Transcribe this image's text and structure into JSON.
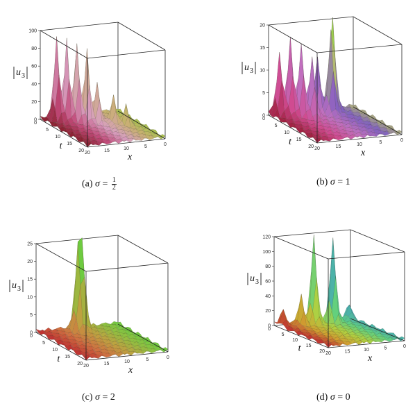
{
  "chart_data": [
    {
      "type": "surface3d",
      "id": "a",
      "caption": {
        "letter": "(a)",
        "symbol": "σ",
        "equals": "=",
        "value_num": "1",
        "value_den": "2",
        "fraction": true
      },
      "zlabel": {
        "base": "u",
        "sub": "3"
      },
      "xlabel": "x",
      "ylabel": "t",
      "z_ticks": [
        "0",
        "20",
        "40",
        "60",
        "80",
        "100"
      ],
      "t_ticks": [
        "0",
        "5",
        "10",
        "15",
        "20"
      ],
      "x_ticks": [
        "20",
        "15",
        "10",
        "5",
        "0"
      ],
      "zlim": [
        0,
        100
      ],
      "palette": [
        "#8a2030",
        "#c24a7a",
        "#d8a0c0",
        "#c8b070",
        "#9acb40",
        "#5fd030"
      ],
      "peaks": [
        {
          "t": 2,
          "x": 17,
          "z": 95
        },
        {
          "t": 3,
          "x": 15,
          "z": 90
        },
        {
          "t": 4,
          "x": 13,
          "z": 88
        },
        {
          "t": 5,
          "x": 11,
          "z": 80
        },
        {
          "t": 2,
          "x": 12,
          "z": 70
        },
        {
          "t": 6,
          "x": 9,
          "z": 45
        },
        {
          "t": 8,
          "x": 6,
          "z": 30
        },
        {
          "t": 10,
          "x": 4,
          "z": 22
        }
      ]
    },
    {
      "type": "surface3d",
      "id": "b",
      "caption": {
        "letter": "(b)",
        "symbol": "σ",
        "equals": "=",
        "value": "1",
        "fraction": false
      },
      "zlabel": {
        "base": "u",
        "sub": "3"
      },
      "xlabel": "x",
      "ylabel": "t",
      "z_ticks": [
        "0",
        "5",
        "10",
        "15",
        "20"
      ],
      "t_ticks": [
        "0",
        "5",
        "10",
        "15",
        "20"
      ],
      "x_ticks": [
        "20",
        "15",
        "10",
        "5",
        "0"
      ],
      "zlim": [
        0,
        20
      ],
      "palette": [
        "#a02040",
        "#d04a90",
        "#c070c0",
        "#8060c0",
        "#c0d060",
        "#60d030"
      ],
      "peaks": [
        {
          "t": 1,
          "x": 18,
          "z": 14
        },
        {
          "t": 2,
          "x": 16,
          "z": 17
        },
        {
          "t": 3,
          "x": 14,
          "z": 16
        },
        {
          "t": 4,
          "x": 12,
          "z": 13
        },
        {
          "t": 1,
          "x": 9,
          "z": 12
        },
        {
          "t": 2,
          "x": 6,
          "z": 22
        },
        {
          "t": 3,
          "x": 7,
          "z": 18
        }
      ]
    },
    {
      "type": "surface3d",
      "id": "c",
      "caption": {
        "letter": "(c)",
        "symbol": "σ",
        "equals": "=",
        "value": "2",
        "fraction": false
      },
      "zlabel": {
        "base": "u",
        "sub": "3"
      },
      "xlabel": "x",
      "ylabel": "t",
      "z_ticks": [
        "0",
        "5",
        "10",
        "15",
        "20",
        "25"
      ],
      "t_ticks": [
        "0",
        "5",
        "10",
        "15",
        "20"
      ],
      "x_ticks": [
        "20",
        "15",
        "10",
        "5",
        "0"
      ],
      "zlim": [
        0,
        25
      ],
      "palette": [
        "#c03030",
        "#d07040",
        "#c0a040",
        "#90c040",
        "#60d040",
        "#5030a0"
      ],
      "peaks": [
        {
          "t": 2,
          "x": 11,
          "z": 25
        },
        {
          "t": 2,
          "x": 10,
          "z": 28
        }
      ]
    },
    {
      "type": "surface3d",
      "id": "d",
      "caption": {
        "letter": "(d)",
        "symbol": "σ",
        "equals": "=",
        "value": "0",
        "fraction": false
      },
      "zlabel": {
        "base": "u",
        "sub": "3"
      },
      "xlabel": "x",
      "ylabel": "t",
      "z_ticks": [
        "0",
        "20",
        "40",
        "60",
        "80",
        "100",
        "120"
      ],
      "t_ticks": [
        "0",
        "5",
        "10",
        "15",
        "20"
      ],
      "x_ticks": [
        "20",
        "15",
        "10",
        "5",
        "0"
      ],
      "zlim": [
        0,
        120
      ],
      "palette": [
        "#c03030",
        "#d0a030",
        "#b0d040",
        "#60d080",
        "#40a0c0",
        "#6040c0"
      ],
      "peaks": [
        {
          "t": 2,
          "x": 19,
          "z": 22
        },
        {
          "t": 3,
          "x": 15,
          "z": 40
        },
        {
          "t": 2,
          "x": 11,
          "z": 120
        },
        {
          "t": 2,
          "x": 6,
          "z": 115
        },
        {
          "t": 1,
          "x": 1,
          "z": 20
        }
      ]
    }
  ]
}
